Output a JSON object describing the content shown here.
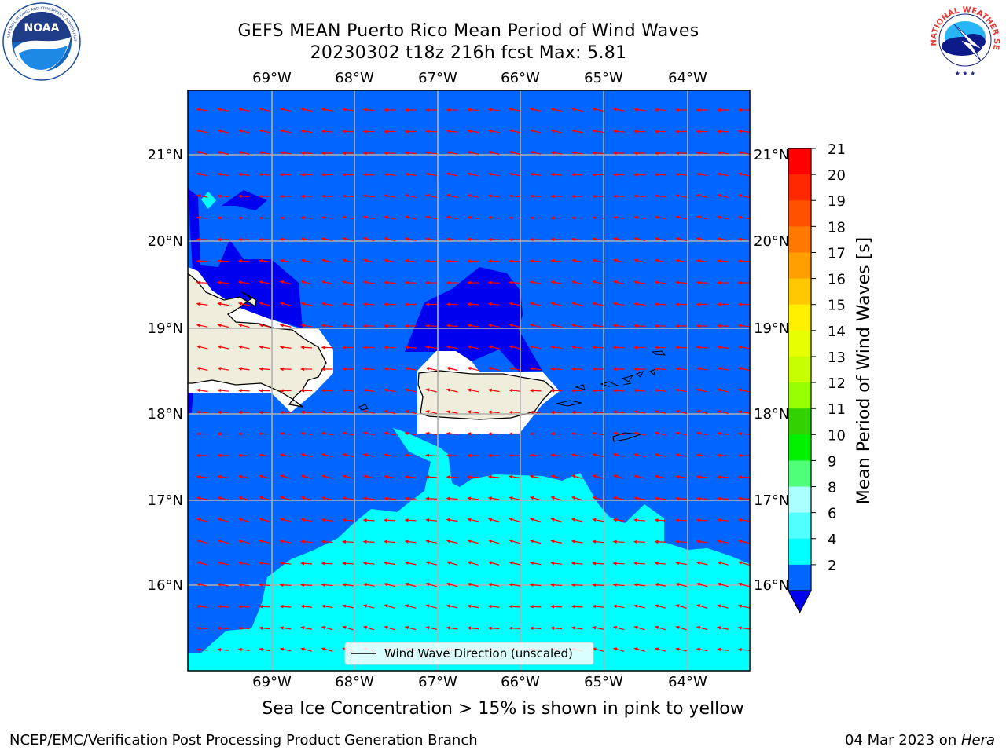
{
  "header": {
    "title_line1": "GEFS MEAN Puerto Rico Mean Period of Wind Waves",
    "title_line2": "20230302 t18z 216h fcst   Max: 5.81"
  },
  "logos": {
    "left": {
      "name": "noaa-logo",
      "text": "NOAA",
      "ring_text": "NATIONAL OCEANIC AND ATMOSPHERIC ADMINISTRATION · U.S. DEPARTMENT OF COMMERCE"
    },
    "right": {
      "name": "nws-logo",
      "ring_text": "NATIONAL WEATHER SERVICE"
    }
  },
  "map": {
    "lon_labels": [
      "69°W",
      "68°W",
      "67°W",
      "66°W",
      "65°W",
      "64°W"
    ],
    "lat_labels": [
      "21°N",
      "20°N",
      "19°N",
      "18°N",
      "17°N",
      "16°N"
    ],
    "legend_label": "Wind Wave Direction (unscaled)",
    "ocean_color": "#0066ff",
    "low_color": "#0000ee",
    "mid_color": "#00ffff",
    "land_color": "#efeedd",
    "arrow_color": "#ff0000"
  },
  "colorbar": {
    "label": "Mean Period of Wind Waves [s]",
    "ticks": [
      "21",
      "20",
      "19",
      "18",
      "17",
      "16",
      "15",
      "14",
      "13",
      "12",
      "11",
      "10",
      "9",
      "8",
      "6",
      "4",
      "2"
    ],
    "colors": [
      "#ff0000",
      "#ff2800",
      "#ff5000",
      "#ff7800",
      "#ffa000",
      "#ffc800",
      "#fff000",
      "#e6ff00",
      "#c8ff00",
      "#96ff00",
      "#32d200",
      "#00f000",
      "#50ff78",
      "#aaffff",
      "#50ffff",
      "#00ffff",
      "#0066ff"
    ],
    "extend_color": "#0000ee"
  },
  "annotation": "Sea Ice Concentration > 15% is shown in pink to yellow",
  "footer": {
    "left": "NCEP/EMC/Verification Post Processing Product Generation Branch",
    "right_date": "04 Mar 2023 on ",
    "right_host": "Hera"
  }
}
